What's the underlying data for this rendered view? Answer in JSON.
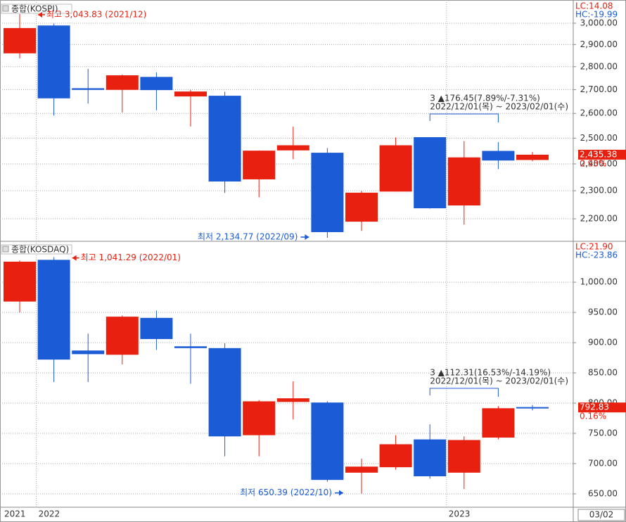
{
  "x_axis": {
    "categories": [
      "2021",
      "2022",
      null,
      null,
      null,
      null,
      null,
      null,
      null,
      null,
      null,
      null,
      null,
      "2023",
      null,
      null
    ],
    "last_date": "03/02"
  },
  "chart_data": [
    {
      "type": "candlestick",
      "title": "종합(KOSPI)",
      "log_scale": true,
      "grid": true,
      "up_color": "#e8200f",
      "down_color": "#1c5bd6",
      "open": [
        2860,
        2989,
        2706,
        2699,
        2755,
        2671,
        2674,
        2342,
        2452,
        2443,
        2190,
        2297,
        2504,
        2247,
        2450,
        2415
      ],
      "high": [
        3043.83,
        2998,
        2790,
        2765,
        2775,
        2699,
        2691,
        2452,
        2546,
        2461,
        2299,
        2503,
        2504,
        2488,
        2484,
        2446
      ],
      "low": [
        2837,
        2591,
        2641,
        2604,
        2613,
        2547,
        2292,
        2276,
        2418,
        2134.77,
        2158,
        2297,
        2236,
        2180,
        2380,
        2410
      ],
      "close": [
        2977,
        2663,
        2699,
        2762,
        2698,
        2692,
        2334,
        2451,
        2472,
        2154,
        2293,
        2472,
        2237,
        2425,
        2413,
        2435.38
      ],
      "ylim": [
        2130,
        3095
      ],
      "yticks": [
        {
          "value": 2200,
          "label": "2,200.00"
        },
        {
          "value": 2300,
          "label": "2,300.00"
        },
        {
          "value": 2400,
          "label": "2,400.00"
        },
        {
          "value": 2500,
          "label": "2,500.00"
        },
        {
          "value": 2600,
          "label": "2,600.00"
        },
        {
          "value": 2700,
          "label": "2,700.00"
        },
        {
          "value": 2800,
          "label": "2,800.00"
        },
        {
          "value": 2900,
          "label": "2,900.00"
        },
        {
          "value": 3000,
          "label": "3,000.00"
        }
      ],
      "high_label": "최고 3,043.83 (2021/12)",
      "low_label": "최저 2,134.77 (2022/09)",
      "range_label": [
        "3 ▲176.45(7.89%/-7.31%)",
        "2022/12/01(목) ~ 2023/02/01(수)"
      ],
      "lc": "LC:14.08",
      "hc": "HC:-19.99",
      "last_label": "2,435.38",
      "change_label": "0.93%"
    },
    {
      "type": "candlestick",
      "title": "종합(KOSDAQ)",
      "log_scale": false,
      "grid": true,
      "up_color": "#e8200f",
      "down_color": "#1c5bd6",
      "open": [
        968,
        1037,
        887,
        880,
        941,
        894,
        891,
        747,
        802,
        801,
        685,
        694,
        740,
        685,
        743,
        793.5
      ],
      "high": [
        1036,
        1041.29,
        915,
        945,
        953,
        915,
        899,
        805,
        836,
        803,
        708,
        747,
        765,
        745,
        795,
        797
      ],
      "low": [
        950,
        835,
        835,
        864,
        888,
        832,
        712,
        712,
        773,
        670,
        650.39,
        690,
        675,
        658,
        740,
        788
      ],
      "close": [
        1034,
        872,
        881,
        943,
        906,
        891,
        745,
        803,
        808,
        673,
        695,
        732,
        679,
        739,
        791.56,
        792.83
      ],
      "ylim": [
        629,
        1063
      ],
      "yticks": [
        {
          "value": 650,
          "label": "650.00"
        },
        {
          "value": 700,
          "label": "700.00"
        },
        {
          "value": 750,
          "label": "750.00"
        },
        {
          "value": 800,
          "label": "800.00"
        },
        {
          "value": 850,
          "label": "850.00"
        },
        {
          "value": 900,
          "label": "900.00"
        },
        {
          "value": 950,
          "label": "950.00"
        },
        {
          "value": 1000,
          "label": "1,000.00"
        }
      ],
      "high_label": "최고 1,041.29 (2022/01)",
      "low_label": "최저 650.39 (2022/10)",
      "range_label": [
        "3 ▲112.31(16.53%/-14.19%)",
        "2022/12/01(목) ~ 2023/02/01(수)"
      ],
      "lc": "LC:21.90",
      "hc": "HC:-23.86",
      "last_label": "792.83",
      "change_label": "0.16%"
    }
  ]
}
